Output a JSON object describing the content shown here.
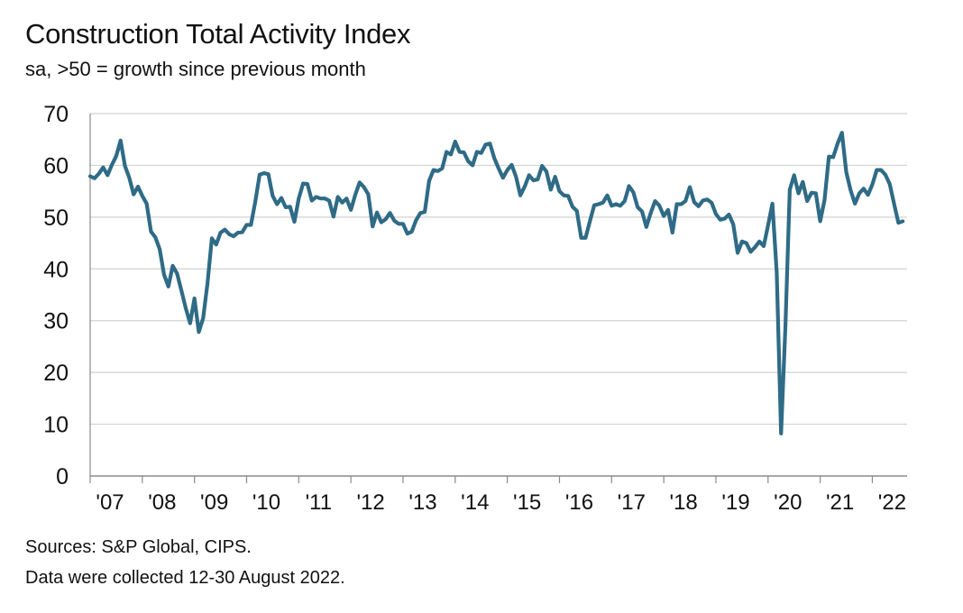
{
  "chart_data": {
    "type": "line",
    "title": "Construction Total Activity Index",
    "subtitle": "sa, >50 = growth since previous month",
    "ylim": [
      0,
      70
    ],
    "yticks": [
      "0",
      "10",
      "20",
      "30",
      "40",
      "50",
      "60",
      "70"
    ],
    "xticks": [
      "'07",
      "'08",
      "'09",
      "'10",
      "'11",
      "'12",
      "'13",
      "'14",
      "'15",
      "'16",
      "'17",
      "'18",
      "'19",
      "'20",
      "'21",
      "'22"
    ],
    "grid": true,
    "series_color": "#2f6b86",
    "start": "2007-01",
    "series": [
      {
        "values": [
          57.9,
          57.5,
          58.4,
          59.6,
          58.1,
          60.1,
          61.8,
          64.8,
          59.9,
          57.6,
          54.4,
          55.9,
          54.1,
          52.6,
          47.2,
          46.1,
          43.8,
          38.9,
          36.6,
          40.6,
          39.1,
          35.8,
          32.4,
          29.5,
          34.3,
          27.8,
          30.5,
          37.2,
          45.9,
          44.7,
          47.0,
          47.6,
          46.7,
          46.3,
          47.0,
          47.1,
          48.5,
          48.5,
          53.0,
          58.2,
          58.5,
          58.3,
          54.1,
          52.5,
          53.7,
          51.9,
          52.0,
          49.1,
          53.6,
          56.5,
          56.4,
          53.2,
          53.9,
          53.6,
          53.6,
          53.2,
          50.1,
          53.9,
          52.8,
          53.6,
          51.4,
          54.3,
          56.7,
          55.8,
          54.4,
          48.2,
          50.9,
          49.0,
          49.6,
          50.8,
          49.3,
          48.7,
          48.7,
          46.8,
          47.2,
          49.4,
          50.8,
          51.0,
          57.0,
          59.1,
          58.9,
          59.4,
          62.6,
          62.1,
          64.6,
          62.6,
          62.5,
          60.8,
          60.0,
          62.6,
          62.4,
          64.0,
          64.2,
          61.4,
          59.4,
          57.6,
          59.1,
          60.1,
          57.8,
          54.2,
          55.9,
          58.1,
          57.1,
          57.3,
          59.9,
          58.8,
          55.3,
          57.8,
          55.0,
          54.2,
          54.1,
          52.0,
          51.2,
          46.0,
          46.0,
          49.2,
          52.3,
          52.5,
          52.8,
          54.2,
          52.2,
          52.5,
          52.2,
          53.1,
          56.0,
          54.8,
          51.9,
          51.1,
          48.1,
          50.8,
          53.1,
          52.2,
          50.2,
          51.4,
          47.0,
          52.5,
          52.5,
          53.1,
          55.8,
          52.9,
          52.1,
          53.2,
          53.4,
          52.8,
          50.6,
          49.5,
          49.7,
          50.5,
          48.6,
          43.1,
          45.3,
          45.0,
          43.3,
          44.2,
          45.3,
          44.4,
          48.4,
          52.6,
          39.3,
          8.2,
          28.9,
          55.3,
          58.1,
          54.6,
          56.8,
          53.1,
          54.7,
          54.6,
          49.2,
          53.3,
          61.7,
          61.6,
          64.2,
          66.3,
          58.7,
          55.2,
          52.6,
          54.6,
          55.5,
          54.3,
          56.3,
          59.1,
          59.1,
          58.2,
          56.4,
          52.6,
          48.9,
          49.2
        ]
      }
    ]
  },
  "footer": {
    "source": "Sources: S&P Global, CIPS.",
    "note": "Data were collected 12-30 August 2022."
  }
}
